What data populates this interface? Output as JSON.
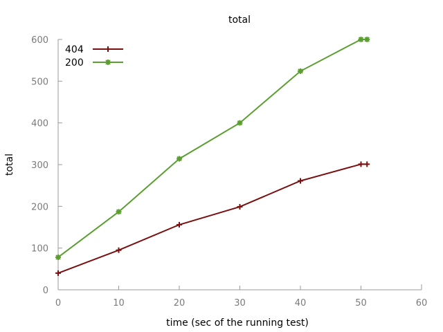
{
  "chart_data": {
    "type": "line",
    "title": "total",
    "xlabel": "time (sec of the running test)",
    "ylabel": "total",
    "xlim": [
      0,
      60
    ],
    "ylim": [
      0,
      600
    ],
    "xticks": [
      0,
      10,
      20,
      30,
      40,
      50,
      60
    ],
    "yticks": [
      0,
      100,
      200,
      300,
      400,
      500,
      600
    ],
    "grid": false,
    "legend_position": "top-left",
    "series": [
      {
        "name": "404",
        "color": "#7a0f0f",
        "marker": "plus",
        "x": [
          0,
          10,
          20,
          30,
          40,
          50,
          51
        ],
        "y": [
          40,
          95,
          156,
          199,
          261,
          301,
          301
        ]
      },
      {
        "name": "200",
        "color": "#5a9e2f",
        "marker": "star",
        "x": [
          0,
          10,
          20,
          30,
          40,
          50,
          51
        ],
        "y": [
          78,
          187,
          314,
          400,
          524,
          600,
          600
        ]
      }
    ]
  }
}
